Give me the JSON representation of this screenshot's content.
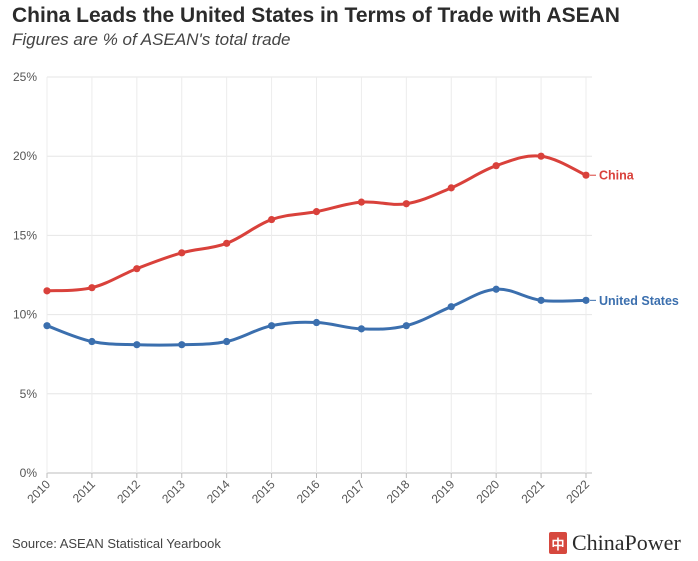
{
  "header": {
    "title": "China Leads the United States in Terms of Trade with ASEAN",
    "subtitle": "Figures are % of ASEAN's total trade"
  },
  "footer": {
    "source": "Source: ASEAN Statistical Yearbook",
    "brand": "ChinaPower",
    "brand_mark": "中"
  },
  "chart_data": {
    "type": "line",
    "title": "China Leads the United States in Terms of Trade with ASEAN",
    "subtitle": "Figures are % of ASEAN's total trade",
    "xlabel": "",
    "ylabel": "",
    "x": [
      "2010",
      "2011",
      "2012",
      "2013",
      "2014",
      "2015",
      "2016",
      "2017",
      "2018",
      "2019",
      "2020",
      "2021",
      "2022"
    ],
    "ylim": [
      0,
      25
    ],
    "yticks": [
      0,
      5,
      10,
      15,
      20,
      25
    ],
    "ytick_labels": [
      "0%",
      "5%",
      "10%",
      "15%",
      "20%",
      "25%"
    ],
    "grid": true,
    "legend": "direct labels at line ends",
    "series": [
      {
        "name": "China",
        "color": "#d9413b",
        "values": [
          11.5,
          11.7,
          12.9,
          13.9,
          14.5,
          16.0,
          16.5,
          17.1,
          17.0,
          18.0,
          19.4,
          20.0,
          18.8
        ]
      },
      {
        "name": "United States",
        "color": "#3b6fae",
        "values": [
          9.3,
          8.3,
          8.1,
          8.1,
          8.3,
          9.3,
          9.5,
          9.1,
          9.3,
          10.5,
          11.6,
          10.9,
          10.9
        ]
      }
    ]
  }
}
